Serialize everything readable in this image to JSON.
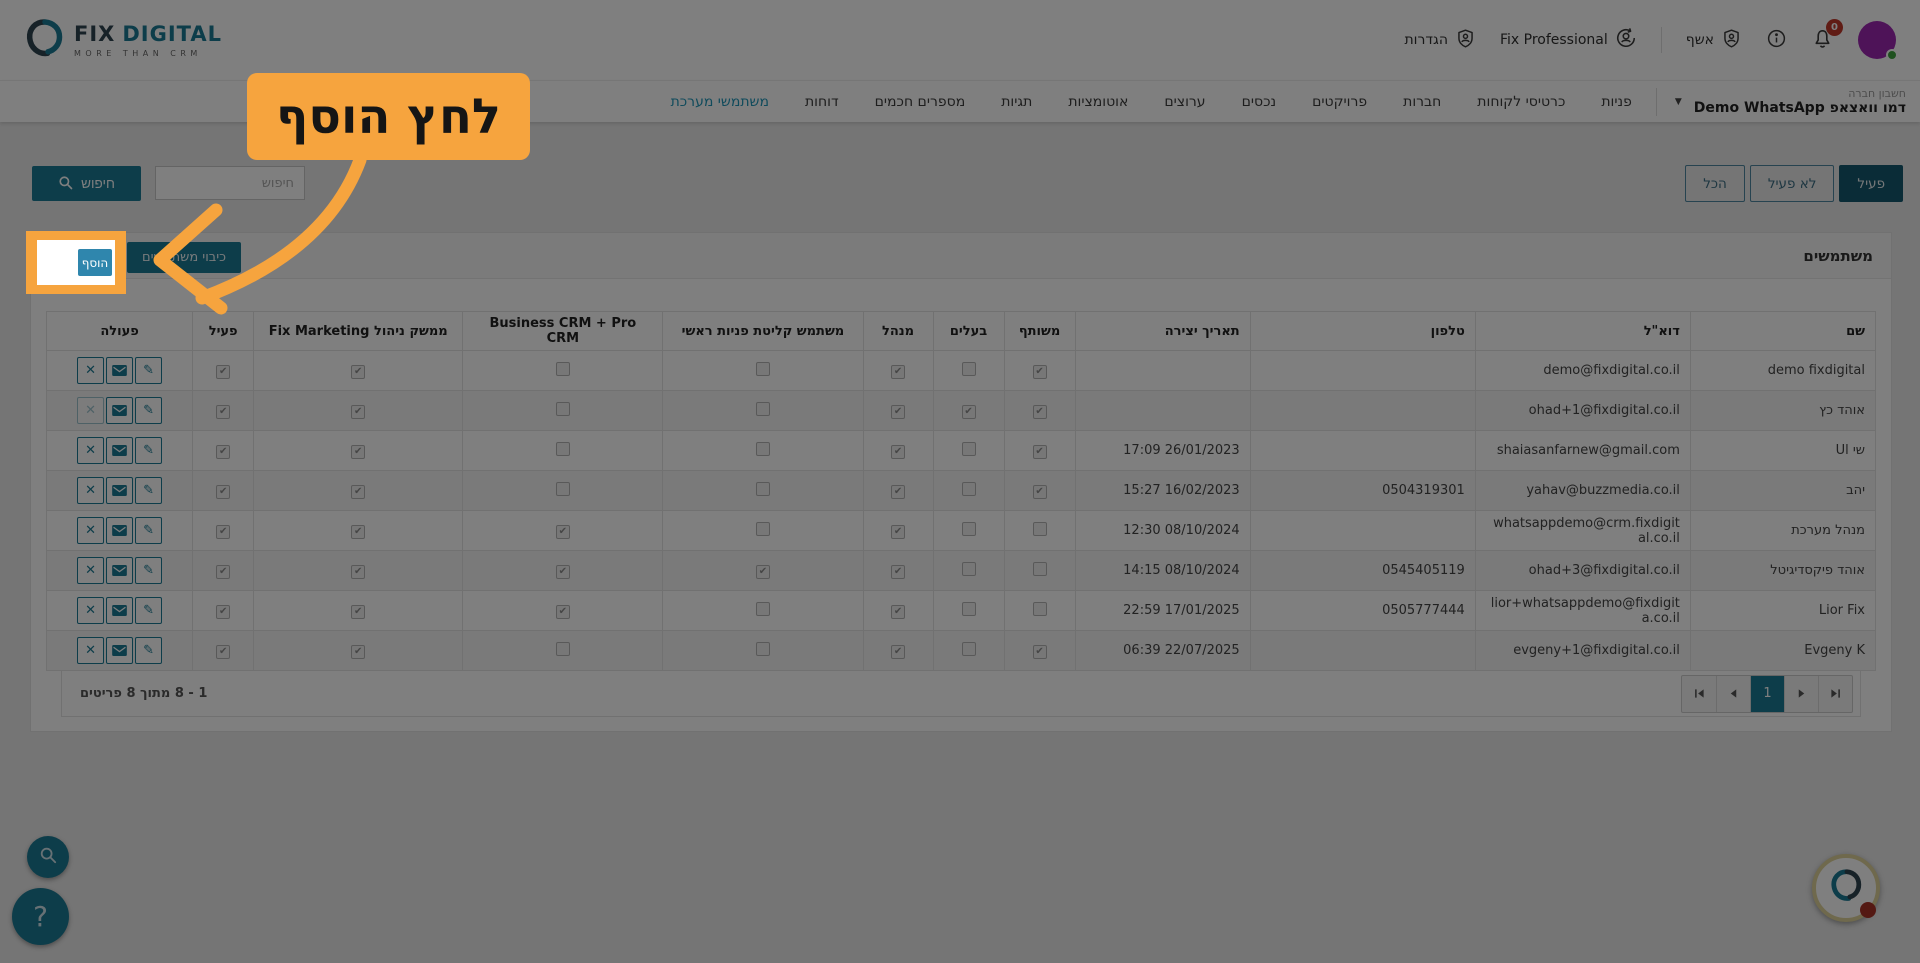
{
  "colors": {
    "accent_teal": "#1B7A94",
    "dark_teal": "#14586E",
    "add_blue": "#2F86AD",
    "highlight_orange": "#F6A43E",
    "badge_red": "#C0392B",
    "avatar_purple": "#9C27B0",
    "status_green": "#3FA33F",
    "nav_active": "#2196B8"
  },
  "header": {
    "logo": {
      "brand_primary": "FIX",
      "brand_secondary": "DIGITAL",
      "tagline": "MORE THAN CRM"
    },
    "settings_label": "הגדרות",
    "profile_label": "Fix Professional",
    "wizard_label": "אשף",
    "notification_badge": "0"
  },
  "nav": {
    "account_label": "חשבון חברה",
    "account_name": "דמו וואצאפ Demo WhatsApp",
    "tabs": [
      {
        "label": "פניות",
        "active": false
      },
      {
        "label": "כרטיסי לקוחות",
        "active": false
      },
      {
        "label": "חברות",
        "active": false
      },
      {
        "label": "פרויקטים",
        "active": false
      },
      {
        "label": "נכסים",
        "active": false
      },
      {
        "label": "ערוצים",
        "active": false
      },
      {
        "label": "אוטומציות",
        "active": false
      },
      {
        "label": "תגיות",
        "active": false
      },
      {
        "label": "מספרים חכמים",
        "active": false
      },
      {
        "label": "דוחות",
        "active": false
      },
      {
        "label": "משתמשי מערכת",
        "active": true
      }
    ]
  },
  "toolbar": {
    "search_button_label": "חיפוש",
    "search_placeholder": "חיפוש",
    "filters": [
      {
        "label": "פעיל",
        "active": true
      },
      {
        "label": "לא פעיל",
        "active": false
      },
      {
        "label": "הכל",
        "active": false
      }
    ]
  },
  "callout": {
    "text": "לחץ הוסף"
  },
  "users_panel": {
    "title": "משתמשים",
    "add_button_label": "הוסף",
    "secondary_button_label": "כיבוי משתמשים",
    "table": {
      "columns": [
        "שם",
        "דוא\"ל",
        "טלפון",
        "תאריך יצירה",
        "משותף",
        "בעלים",
        "מנהל",
        "משתמש קליטת פניות ראשי",
        "Business CRM + Pro CRM",
        "ממשק ניהול Fix Marketing",
        "פעיל",
        "פעולה"
      ],
      "rows": [
        {
          "name": "demo fixdigital",
          "email": "demo@fixdigital.co.il",
          "phone": "",
          "created": "",
          "shared": true,
          "owner": false,
          "manager": true,
          "primary_intake_user": false,
          "business_crm": false,
          "fix_marketing": true,
          "active": true,
          "delete_disabled": false
        },
        {
          "name": "אוהד כץ",
          "email": "ohad+1@fixdigital.co.il",
          "phone": "",
          "created": "",
          "shared": true,
          "owner": true,
          "manager": true,
          "primary_intake_user": false,
          "business_crm": false,
          "fix_marketing": true,
          "active": true,
          "delete_disabled": true
        },
        {
          "name": "שי Ul",
          "email": "shaiasanfarnew@gmail.com",
          "phone": "",
          "created": "17:09 26/01/2023",
          "shared": true,
          "owner": false,
          "manager": true,
          "primary_intake_user": false,
          "business_crm": false,
          "fix_marketing": true,
          "active": true,
          "delete_disabled": false
        },
        {
          "name": "יהב",
          "email": "yahav@buzzmedia.co.il",
          "phone": "0504319301",
          "created": "15:27 16/02/2023",
          "shared": true,
          "owner": false,
          "manager": true,
          "primary_intake_user": false,
          "business_crm": false,
          "fix_marketing": true,
          "active": true,
          "delete_disabled": false
        },
        {
          "name": "מנהל מערכת",
          "email": "whatsappdemo@crm.fixdigital.co.il",
          "phone": "",
          "created": "12:30 08/10/2024",
          "shared": false,
          "owner": false,
          "manager": true,
          "primary_intake_user": false,
          "business_crm": true,
          "fix_marketing": true,
          "active": true,
          "delete_disabled": false
        },
        {
          "name": "אוהד פיקסדיגיטל",
          "email": "ohad+3@fixdigital.co.il",
          "phone": "0545405119",
          "created": "14:15 08/10/2024",
          "shared": false,
          "owner": false,
          "manager": true,
          "primary_intake_user": true,
          "business_crm": true,
          "fix_marketing": true,
          "active": true,
          "delete_disabled": false
        },
        {
          "name": "Lior Fix",
          "email": "lior+whatsappdemo@fixdigita.co.il",
          "phone": "0505777444",
          "created": "22:59 17/01/2025",
          "shared": false,
          "owner": false,
          "manager": true,
          "primary_intake_user": false,
          "business_crm": true,
          "fix_marketing": true,
          "active": true,
          "delete_disabled": false
        },
        {
          "name": "Evgeny K",
          "email": "evgeny+1@fixdigital.co.il",
          "phone": "",
          "created": "06:39 22/07/2025",
          "shared": true,
          "owner": false,
          "manager": true,
          "primary_intake_user": false,
          "business_crm": false,
          "fix_marketing": true,
          "active": true,
          "delete_disabled": false
        }
      ]
    },
    "footer": {
      "items_count_text": "1 - 8 מתוך 8 פריטים",
      "current_page": "1"
    }
  }
}
